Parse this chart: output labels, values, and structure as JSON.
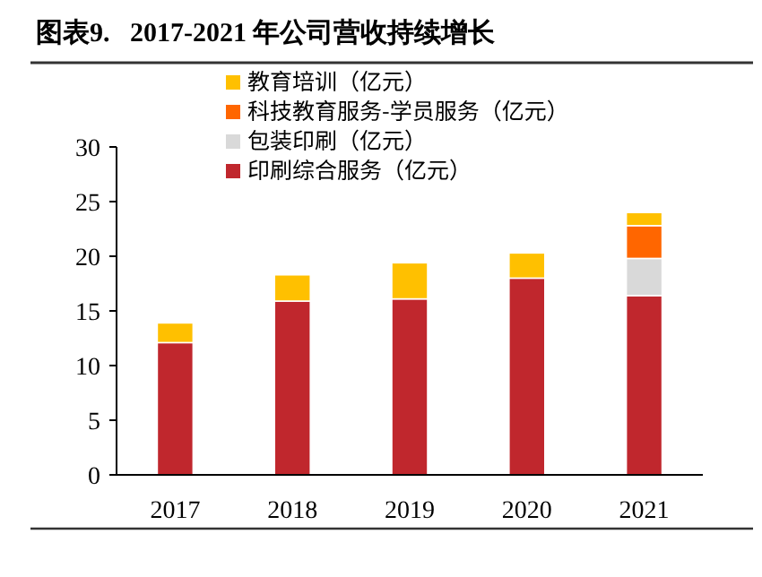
{
  "chart_data": {
    "type": "bar",
    "title": "图表9.   2017-2021 年公司营收持续增长",
    "stacked": true,
    "legend": "top",
    "grid": false,
    "categories": [
      "2017",
      "2018",
      "2019",
      "2020",
      "2021"
    ],
    "ylim": [
      0,
      30
    ],
    "yticks": [
      0,
      5,
      10,
      15,
      20,
      25,
      30
    ],
    "series": [
      {
        "name": "印刷综合服务（亿元）",
        "color": "#c0272d",
        "values": [
          12.1,
          15.9,
          16.1,
          18.0,
          16.4
        ]
      },
      {
        "name": "包装印刷（亿元）",
        "color": "#d9d9d9",
        "values": [
          null,
          null,
          null,
          null,
          3.4
        ]
      },
      {
        "name": "科技教育服务-学员服务（亿元）",
        "color": "#ff6600",
        "values": [
          null,
          null,
          null,
          null,
          3.0
        ]
      },
      {
        "name": "教育培训（亿元）",
        "color": "#ffc000",
        "values": [
          1.8,
          2.4,
          3.3,
          2.3,
          1.2
        ]
      }
    ]
  }
}
